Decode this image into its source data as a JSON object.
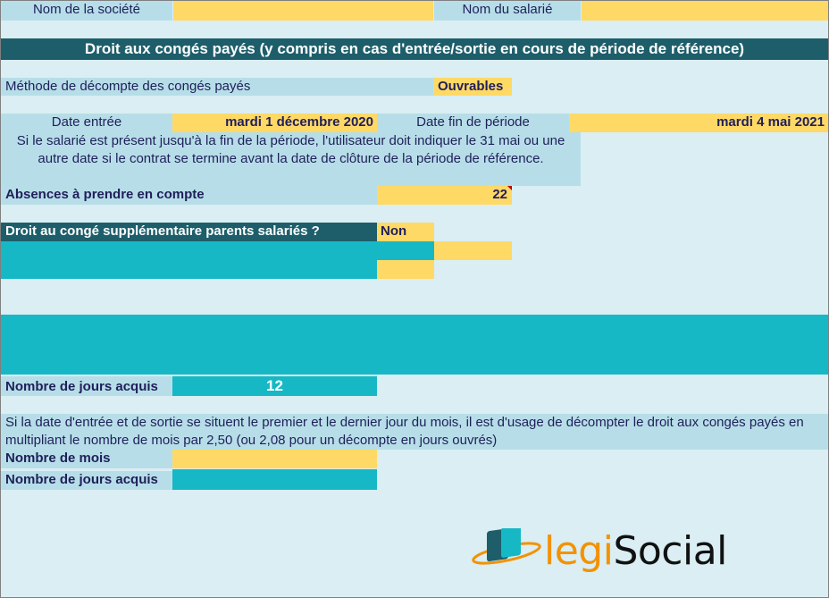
{
  "header": {
    "company_label": "Nom de la société",
    "company_value": "",
    "employee_label": "Nom du salarié",
    "employee_value": ""
  },
  "title": "Droit aux congés payés (y compris en cas d'entrée/sortie en cours de période de référence)",
  "method": {
    "label": "Méthode de décompte des congés payés",
    "value": "Ouvrables"
  },
  "dates": {
    "entry_label": "Date entrée",
    "entry_value": "mardi 1 décembre 2020",
    "end_label": "Date fin de période",
    "end_value": "mardi 4 mai 2021",
    "note": "Si le salarié est présent jusqu'à la fin de la période, l'utilisateur doit indiquer le 31 mai ou une autre date si le contrat se termine avant la date de clôture de la période de référence."
  },
  "absences": {
    "label": "Absences à prendre en compte",
    "value": "22"
  },
  "parents": {
    "label": "Droit au congé supplémentaire parents salariés ?",
    "value": "Non"
  },
  "acquired": {
    "label": "Nombre de jours acquis",
    "value": "12"
  },
  "months_note": "Si la date d'entrée et de sortie se situent le premier et le dernier jour du mois, il est d'usage de décompter le droit aux congés payés en multipliant le nombre de mois par 2,50 (ou 2,08 pour un décompte en jours ouvrés)",
  "months": {
    "label": "Nombre de mois",
    "value": "",
    "days_label": "Nombre de jours acquis",
    "days_value": ""
  },
  "logo": {
    "prefix": "legi",
    "suffix": "Social"
  },
  "colors": {
    "sheet": "#daeef3",
    "label_cell": "#b7dee8",
    "input_cell": "#ffd966",
    "teal": "#17b8c6",
    "dark": "#1d5e6a",
    "logo_accent": "#f39200"
  }
}
